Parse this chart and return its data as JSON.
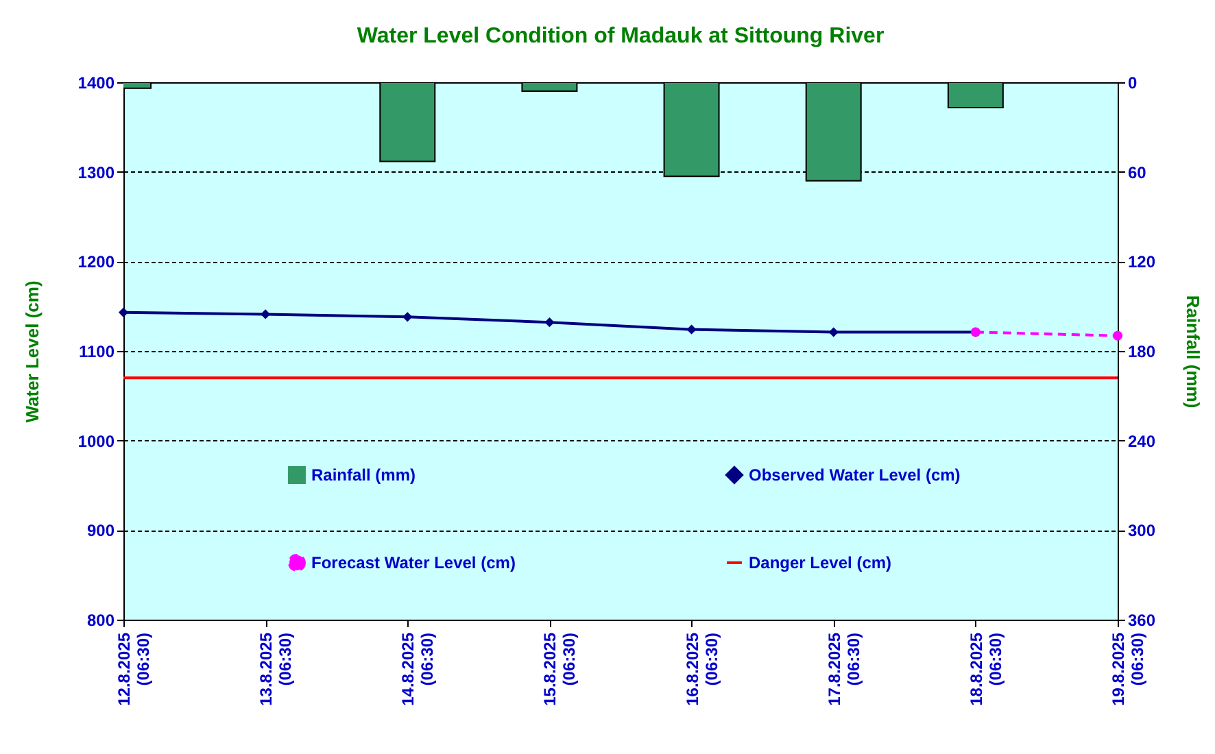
{
  "chart_data": {
    "type": "line",
    "title": "Water Level Condition of Madauk at Sittoung River",
    "ylabel": "Water Level (cm)",
    "y2label": "Rainfall (mm)",
    "categories": [
      "12.8.2025\n(06:30)",
      "13.8.2025\n(06:30)",
      "14.8.2025\n(06:30)",
      "15.8.2025\n(06:30)",
      "16.8.2025\n(06:30)",
      "17.8.2025\n(06:30)",
      "18.8.2025\n(06:30)",
      "19.8.2025\n(06:30)"
    ],
    "series": [
      {
        "name": "Rainfall (mm)",
        "type": "bar",
        "axis": "y2",
        "color": "#339966",
        "values": [
          4,
          null,
          53,
          6,
          63,
          66,
          17,
          null
        ]
      },
      {
        "name": "Observed Water Level (cm)",
        "color": "#000080",
        "marker": "diamond",
        "line_style": "solid",
        "values": [
          1143,
          1141,
          1138,
          1132,
          1124,
          1121,
          1121,
          null
        ]
      },
      {
        "name": "Forecast Water Level (cm)",
        "color": "#ff00ff",
        "marker": "circle",
        "line_style": "dashed",
        "values": [
          null,
          null,
          null,
          null,
          null,
          null,
          1121,
          1117
        ]
      }
    ],
    "ref_lines": [
      {
        "axis": "y",
        "value": 1070,
        "label": "Danger Level (cm)",
        "color": "#ff0000"
      }
    ],
    "ylim": [
      800,
      1400
    ],
    "yticks": [
      800,
      900,
      1000,
      1100,
      1200,
      1300,
      1400
    ],
    "y2lim": [
      360,
      0
    ],
    "y2ticks": [
      0,
      60,
      120,
      180,
      240,
      300,
      360
    ],
    "grid": "y",
    "legend": "bottom"
  }
}
